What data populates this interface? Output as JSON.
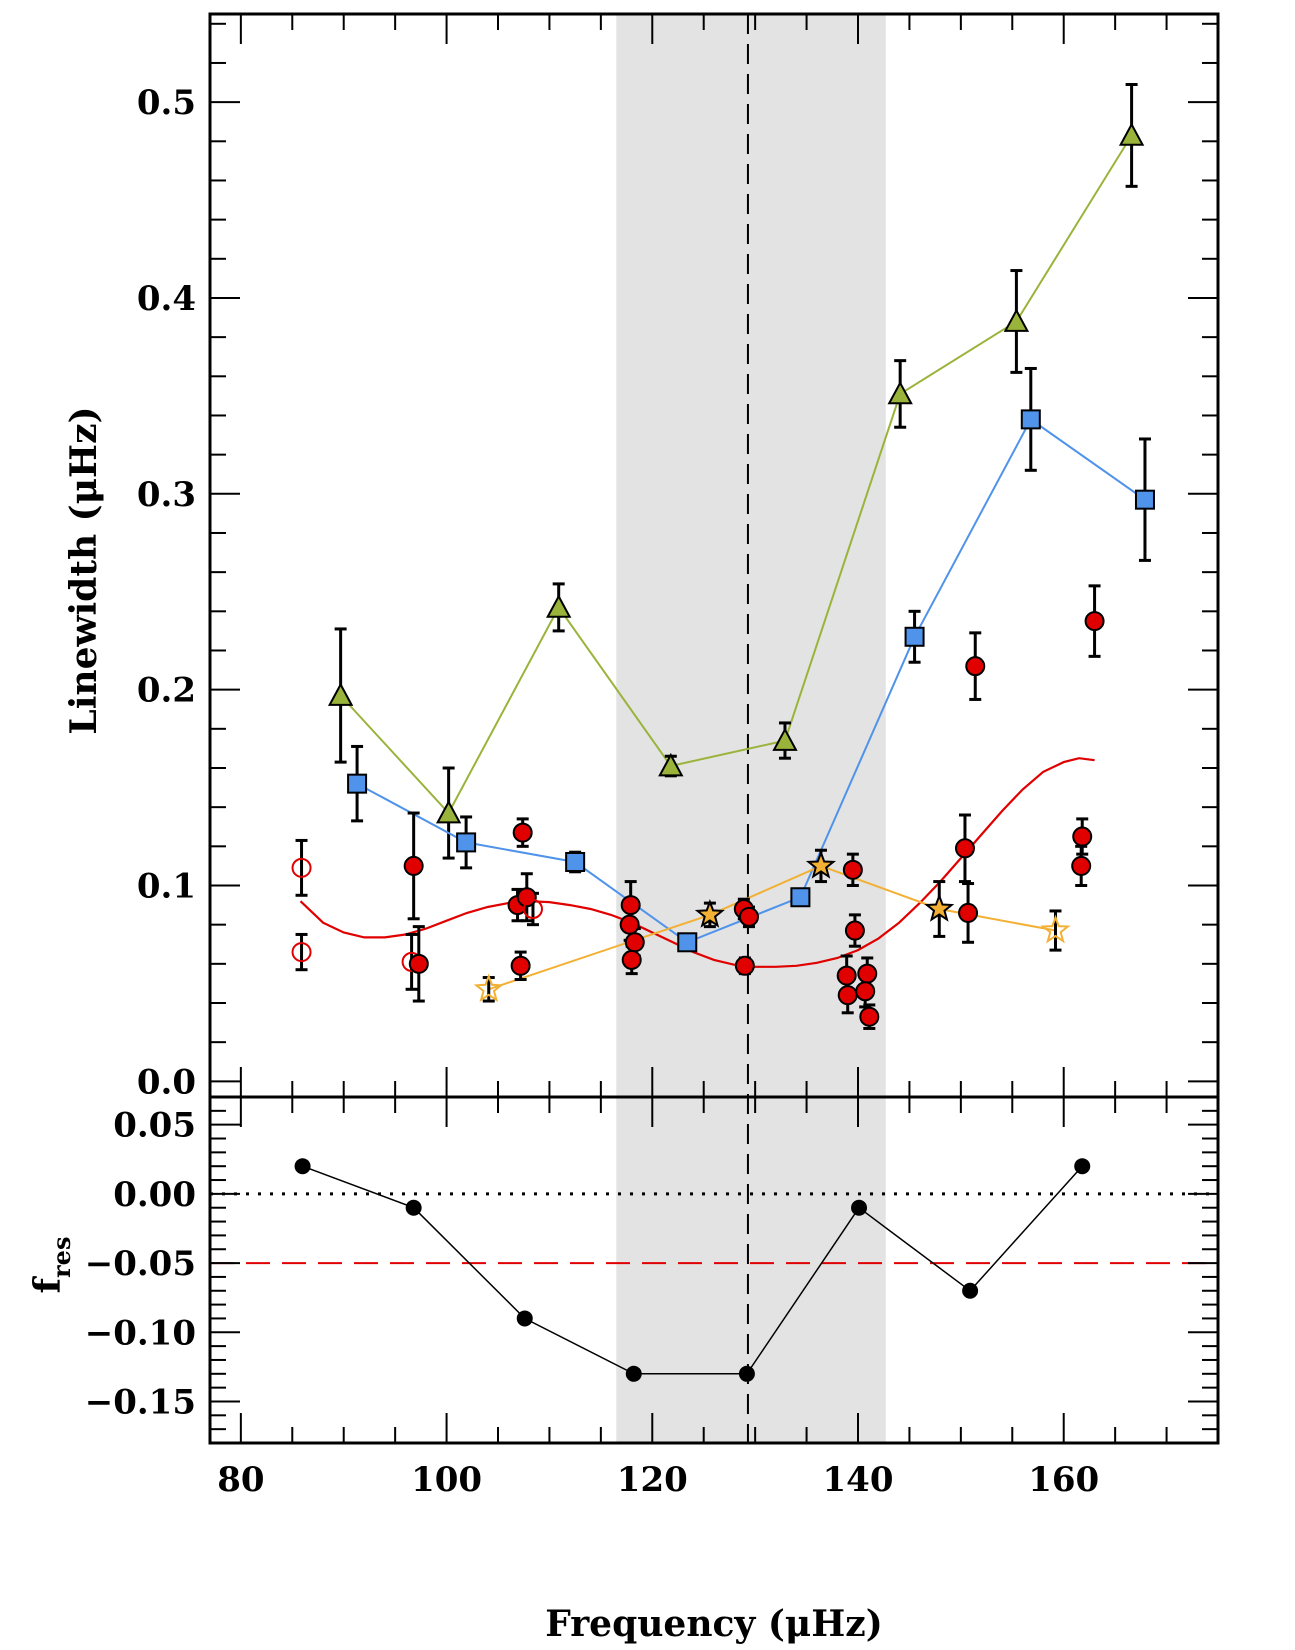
{
  "chart_data": [
    {
      "type": "scatter",
      "panel": "top",
      "xlabel": "Frequency (μHz)",
      "ylabel": "Linewidth (μHz)",
      "xlim": [
        77,
        175
      ],
      "ylim": [
        -0.008,
        0.545
      ],
      "yticks": [
        "0.0",
        "0.1",
        "0.2",
        "0.3",
        "0.4",
        "0.5"
      ],
      "ytick_values": [
        0.0,
        0.1,
        0.2,
        0.3,
        0.4,
        0.5
      ],
      "shaded_band": [
        116.5,
        142.7
      ],
      "dashed_vline": 129.3,
      "series": [
        {
          "marker": "triangle",
          "color": "#9ab33a",
          "line": true,
          "points": [
            {
              "x": 89.7,
              "y": 0.197,
              "err": 0.034
            },
            {
              "x": 100.2,
              "y": 0.137,
              "err": 0.023
            },
            {
              "x": 110.9,
              "y": 0.242,
              "err": 0.012
            },
            {
              "x": 121.8,
              "y": 0.161,
              "err": 0.005
            },
            {
              "x": 132.9,
              "y": 0.174,
              "err": 0.009
            },
            {
              "x": 144.1,
              "y": 0.351,
              "err": 0.017
            },
            {
              "x": 155.4,
              "y": 0.388,
              "err": 0.026
            },
            {
              "x": 166.6,
              "y": 0.483,
              "err": 0.026
            }
          ]
        },
        {
          "marker": "square",
          "color": "#4f93ea",
          "line": true,
          "points": [
            {
              "x": 91.3,
              "y": 0.152,
              "err": 0.019
            },
            {
              "x": 101.9,
              "y": 0.122,
              "err": 0.013
            },
            {
              "x": 112.5,
              "y": 0.112,
              "err": 0.005
            },
            {
              "x": 123.4,
              "y": 0.071,
              "err": 0.003
            },
            {
              "x": 134.4,
              "y": 0.094,
              "err": 0.004
            },
            {
              "x": 145.5,
              "y": 0.227,
              "err": 0.013
            },
            {
              "x": 156.8,
              "y": 0.338,
              "err": 0.026
            },
            {
              "x": 167.9,
              "y": 0.297,
              "err": 0.031
            }
          ]
        },
        {
          "marker": "star",
          "color": "#f2b035",
          "line": true,
          "points": [
            {
              "x": 104.1,
              "y": 0.047,
              "err": 0.006,
              "open": true
            },
            {
              "x": 125.6,
              "y": 0.085,
              "err": 0.006,
              "open": false
            },
            {
              "x": 136.4,
              "y": 0.11,
              "err": 0.008,
              "open": false
            },
            {
              "x": 147.9,
              "y": 0.088,
              "err": 0.014,
              "open": false
            },
            {
              "x": 159.2,
              "y": 0.077,
              "err": 0.01,
              "open": true
            }
          ]
        },
        {
          "marker": "circle",
          "color": "#e00000",
          "line": false,
          "points": [
            {
              "x": 85.9,
              "y": 0.109,
              "err": 0.014,
              "open": true
            },
            {
              "x": 85.9,
              "y": 0.066,
              "err": 0.009,
              "open": true
            },
            {
              "x": 96.6,
              "y": 0.061,
              "err": 0.014,
              "open": true
            },
            {
              "x": 96.8,
              "y": 0.11,
              "err": 0.027,
              "open": false
            },
            {
              "x": 97.3,
              "y": 0.06,
              "err": 0.019,
              "open": false
            },
            {
              "x": 106.9,
              "y": 0.09,
              "err": 0.008,
              "open": false
            },
            {
              "x": 107.2,
              "y": 0.059,
              "err": 0.007,
              "open": false
            },
            {
              "x": 107.4,
              "y": 0.127,
              "err": 0.007,
              "open": false
            },
            {
              "x": 107.8,
              "y": 0.094,
              "err": 0.012,
              "open": false
            },
            {
              "x": 108.4,
              "y": 0.088,
              "err": 0.008,
              "open": true
            },
            {
              "x": 117.9,
              "y": 0.09,
              "err": 0.012,
              "open": false
            },
            {
              "x": 117.8,
              "y": 0.08,
              "err": 0.008,
              "open": false
            },
            {
              "x": 118.3,
              "y": 0.071,
              "err": 0.007,
              "open": false
            },
            {
              "x": 118.0,
              "y": 0.062,
              "err": 0.007,
              "open": false
            },
            {
              "x": 128.9,
              "y": 0.088,
              "err": 0.005,
              "open": false
            },
            {
              "x": 129.4,
              "y": 0.084,
              "err": 0.005,
              "open": false
            },
            {
              "x": 129.0,
              "y": 0.059,
              "err": 0.004,
              "open": false
            },
            {
              "x": 139.5,
              "y": 0.108,
              "err": 0.008,
              "open": false
            },
            {
              "x": 139.7,
              "y": 0.077,
              "err": 0.008,
              "open": false
            },
            {
              "x": 138.9,
              "y": 0.054,
              "err": 0.01,
              "open": false
            },
            {
              "x": 139.0,
              "y": 0.044,
              "err": 0.009,
              "open": false
            },
            {
              "x": 140.9,
              "y": 0.055,
              "err": 0.008,
              "open": false
            },
            {
              "x": 140.7,
              "y": 0.046,
              "err": 0.008,
              "open": false
            },
            {
              "x": 141.1,
              "y": 0.033,
              "err": 0.006,
              "open": false
            },
            {
              "x": 150.4,
              "y": 0.119,
              "err": 0.017,
              "open": false
            },
            {
              "x": 150.7,
              "y": 0.086,
              "err": 0.015,
              "open": false
            },
            {
              "x": 151.4,
              "y": 0.212,
              "err": 0.017,
              "open": false
            },
            {
              "x": 161.8,
              "y": 0.125,
              "err": 0.009,
              "open": false
            },
            {
              "x": 161.7,
              "y": 0.11,
              "err": 0.01,
              "open": false
            },
            {
              "x": 163.0,
              "y": 0.235,
              "err": 0.018,
              "open": false
            }
          ]
        }
      ],
      "model_curve": {
        "color": "#e00000",
        "x": [
          85.8,
          88,
          90,
          92,
          94,
          96,
          98,
          100,
          102,
          104,
          106,
          108,
          110,
          112,
          114,
          116,
          118,
          120,
          122,
          124,
          126,
          128,
          130,
          132,
          134,
          136,
          138,
          140,
          142,
          144,
          146,
          148,
          150,
          152,
          154,
          156,
          158,
          160,
          161.5,
          163
        ],
        "y": [
          0.092,
          0.081,
          0.076,
          0.0735,
          0.0735,
          0.075,
          0.078,
          0.082,
          0.086,
          0.089,
          0.091,
          0.092,
          0.0915,
          0.09,
          0.088,
          0.085,
          0.081,
          0.076,
          0.071,
          0.066,
          0.062,
          0.0595,
          0.0585,
          0.0585,
          0.059,
          0.0605,
          0.063,
          0.067,
          0.073,
          0.081,
          0.091,
          0.102,
          0.114,
          0.126,
          0.138,
          0.149,
          0.158,
          0.163,
          0.165,
          0.164
        ]
      }
    },
    {
      "type": "line",
      "panel": "bottom",
      "xlabel": "Frequency (μHz)",
      "ylabel": "f",
      "ylabel_sub": "res",
      "xlim": [
        77,
        175
      ],
      "ylim": [
        -0.18,
        0.07
      ],
      "xticks": [
        "80",
        "100",
        "120",
        "140",
        "160"
      ],
      "xtick_values": [
        80,
        100,
        120,
        140,
        160
      ],
      "yticks": [
        "0.05",
        "0.00",
        "−0.05",
        "−0.10",
        "−0.15"
      ],
      "ytick_values": [
        0.05,
        0.0,
        -0.05,
        -0.1,
        -0.15
      ],
      "reference_lines": [
        {
          "y": 0.0,
          "style": "dotted",
          "color": "#000000"
        },
        {
          "y": -0.05,
          "style": "dashed",
          "color": "#e00000"
        }
      ],
      "x": [
        86.0,
        96.8,
        107.6,
        118.2,
        129.2,
        140.1,
        150.9,
        161.8
      ],
      "y": [
        0.02,
        -0.01,
        -0.09,
        -0.13,
        -0.13,
        -0.01,
        -0.07,
        0.02
      ]
    }
  ]
}
